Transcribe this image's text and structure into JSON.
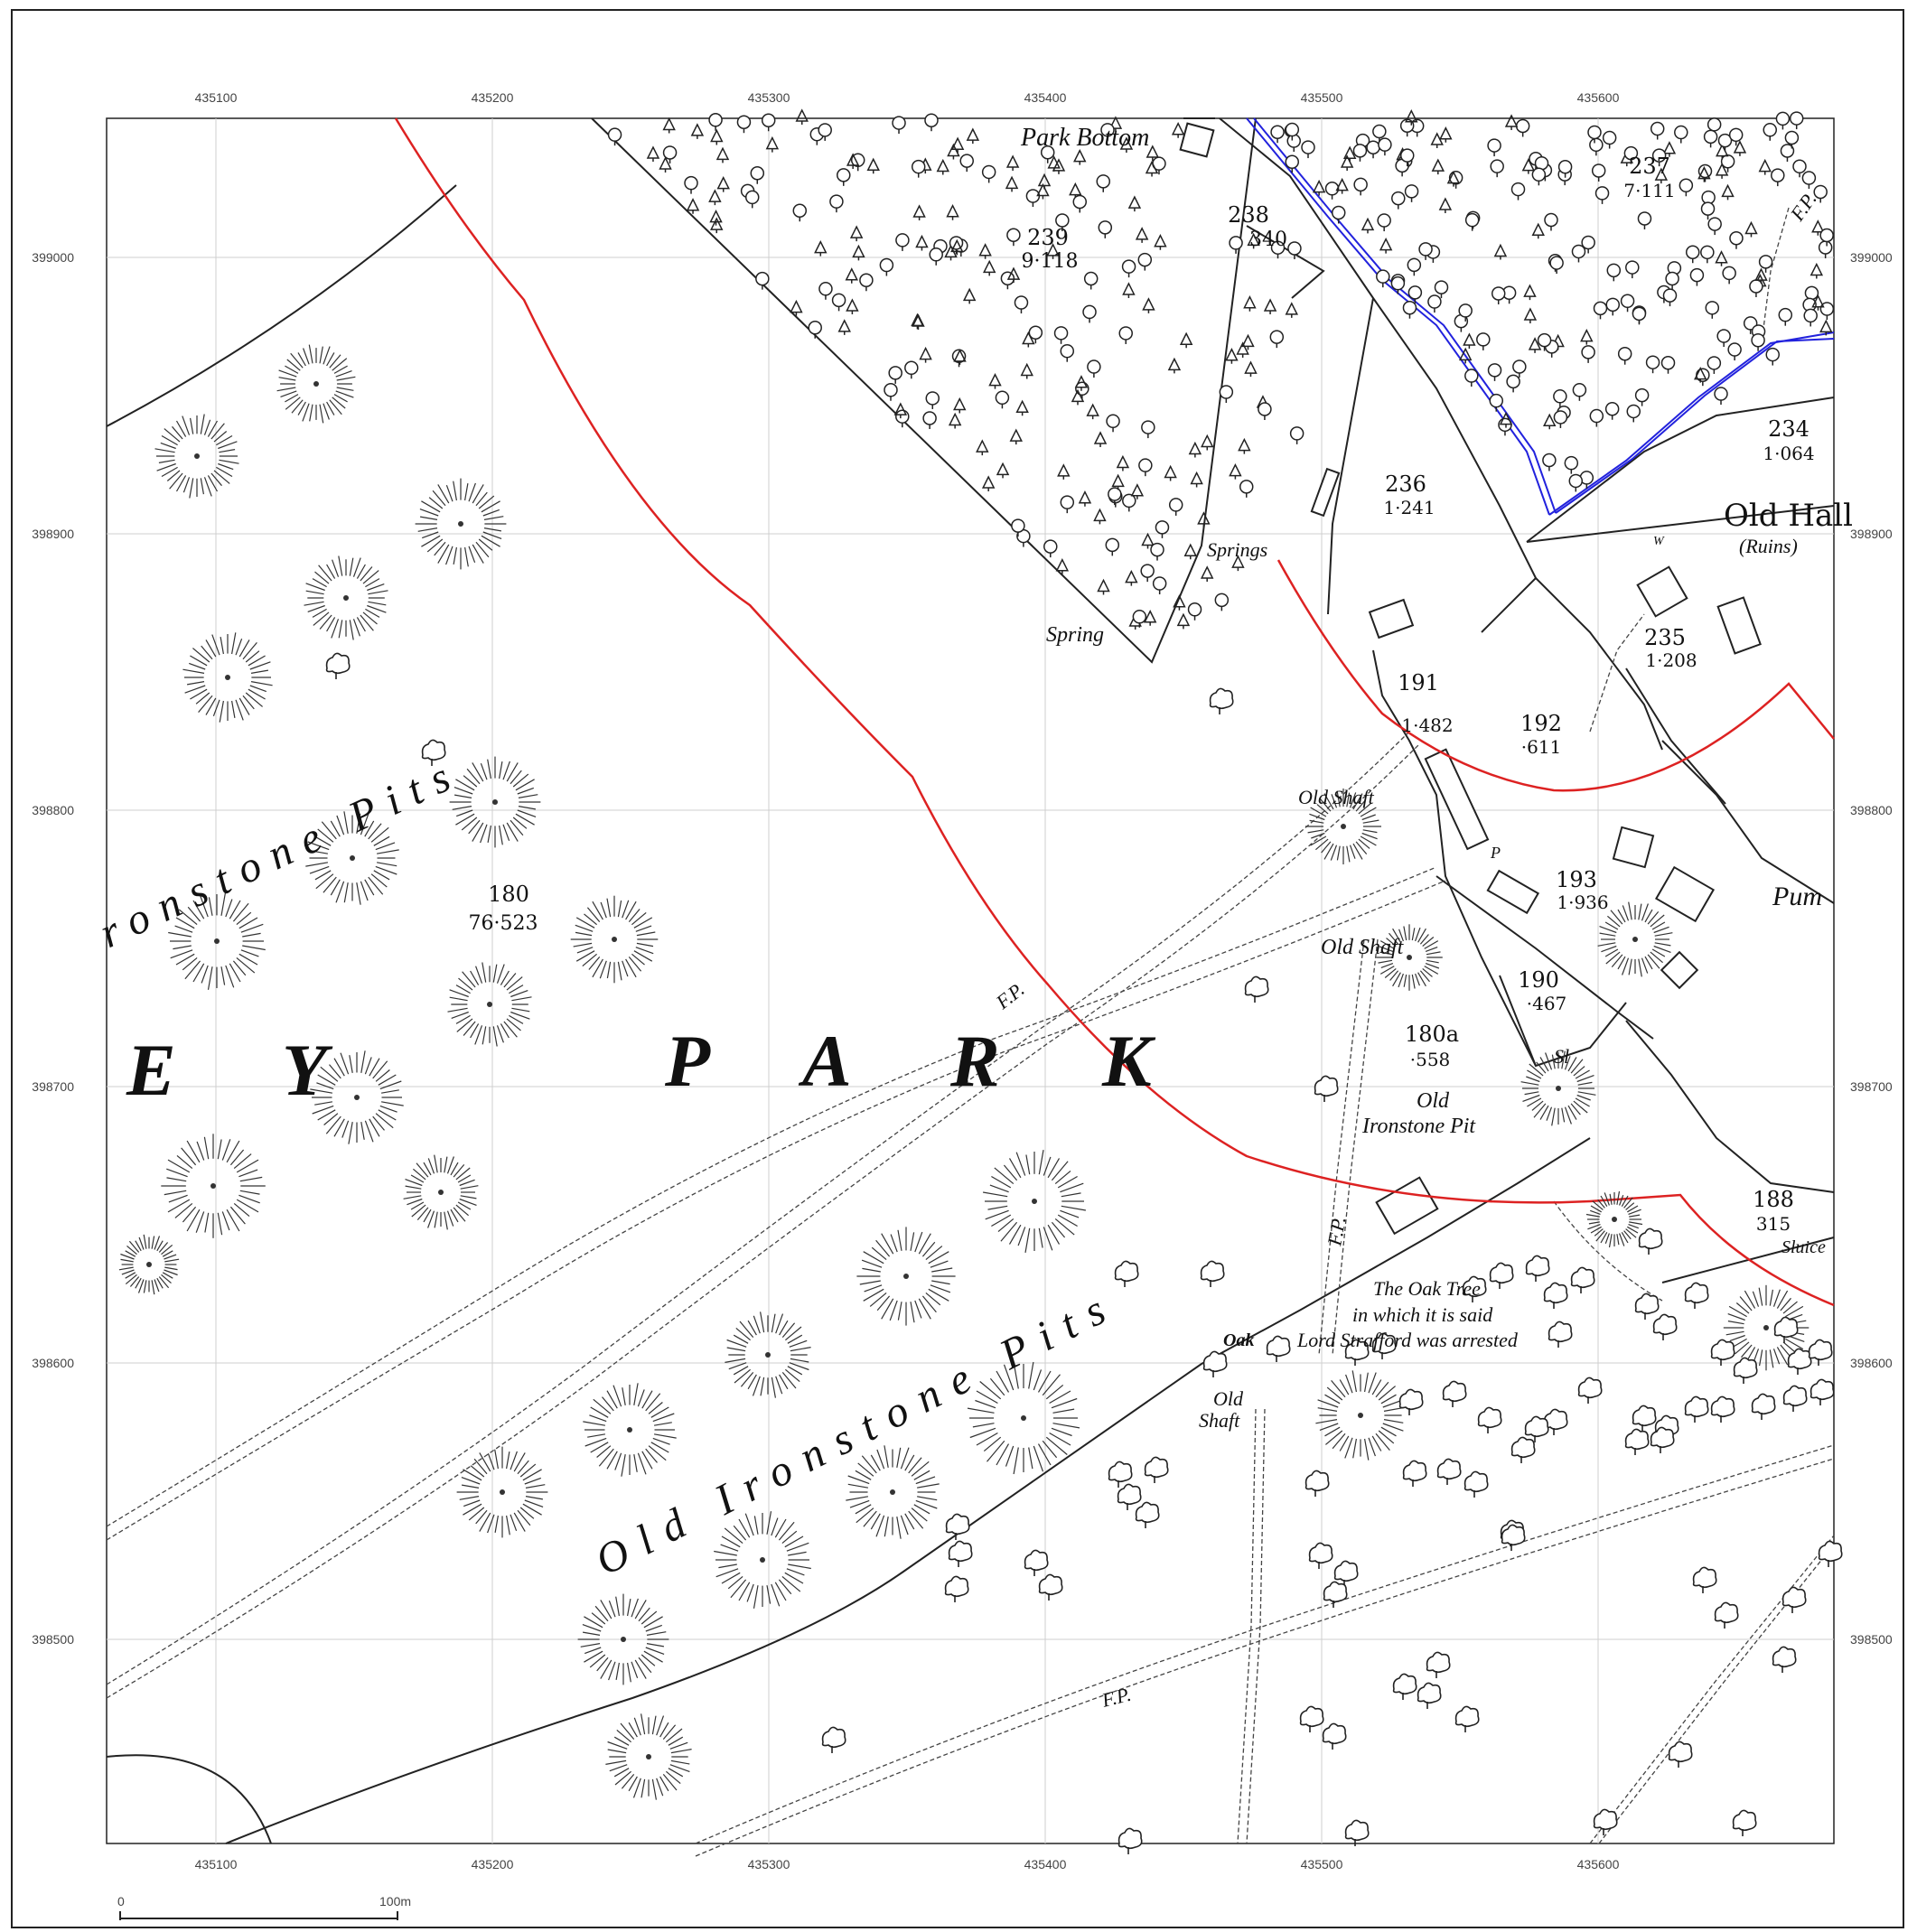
{
  "map": {
    "grid": {
      "eastings": [
        "435100",
        "435200",
        "435300",
        "435400",
        "435500",
        "435600"
      ],
      "northings": [
        "399000",
        "398900",
        "398800",
        "398700",
        "398600",
        "398500"
      ]
    },
    "scale_bar": {
      "start": "0",
      "end": "100m"
    },
    "park_letters": [
      "E",
      "Y",
      "P",
      "A",
      "R",
      "K"
    ],
    "plots": [
      {
        "num": "239",
        "area": "9·118"
      },
      {
        "num": "238",
        "area": "340"
      },
      {
        "num": "237",
        "area": "7·111"
      },
      {
        "num": "234",
        "area": "1·064"
      },
      {
        "num": "236",
        "area": "1·241"
      },
      {
        "num": "235",
        "area": "1·208"
      },
      {
        "num": "191",
        "area": "1·482"
      },
      {
        "num": "192",
        "area": "·611"
      },
      {
        "num": "193",
        "area": "1·936"
      },
      {
        "num": "190",
        "area": "·467"
      },
      {
        "num": "180a",
        "area": "·558"
      },
      {
        "num": "180",
        "area": "76·523"
      },
      {
        "num": "188",
        "area": "315"
      }
    ],
    "labels": {
      "park_bottom": "Park Bottom",
      "old_hall": "Old Hall",
      "ruins": "(Ruins)",
      "springs": "Springs",
      "spring": "Spring",
      "old_shaft_1": "Old Shaft",
      "old_shaft_2": "Old Shaft",
      "old_shaft_3a": "Old",
      "old_shaft_3b": "Shaft",
      "old_ironstone_pit_a": "Old",
      "old_ironstone_pit_b": "Ironstone Pit",
      "ironstone_pits_top": "ronstone Pits",
      "old_ironstone_pits": "Old Ironstone Pits",
      "fp_1": "F.P.",
      "fp_2": "F.P.",
      "fp_3": "F.P.",
      "fp_4": "F.P.",
      "oak": "Oak",
      "oak_tree_1": "The Oak Tree",
      "oak_tree_2": "in which it is said",
      "oak_tree_3": "Lord Strafford was arrested",
      "pum": "Pum",
      "sluice": "Sluice",
      "sl": "Sl",
      "w": "W",
      "p": "P"
    },
    "colors": {
      "boundary": "#dd2222",
      "watercourse": "#2222dd",
      "linework": "#222222",
      "grid": "#cfcfcf"
    }
  }
}
